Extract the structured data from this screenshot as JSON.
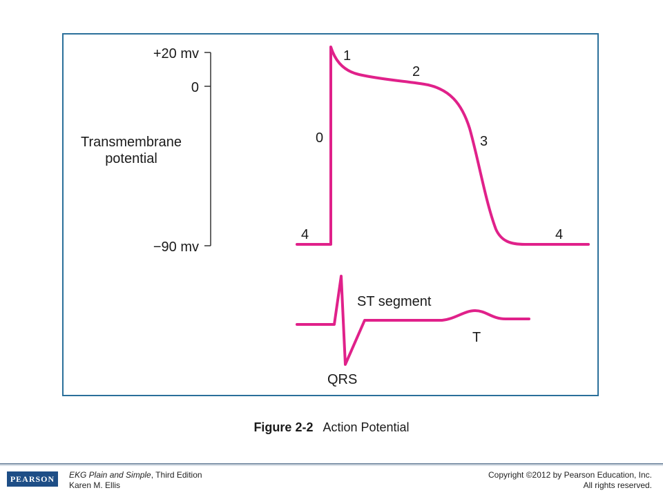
{
  "figure": {
    "y_axis": {
      "top_label": "+20 mv",
      "zero_label": "0",
      "bottom_label": "−90 mv",
      "title_line1": "Transmembrane",
      "title_line2": "potential"
    },
    "action_potential_phases": {
      "phase0": "0",
      "phase1": "1",
      "phase2": "2",
      "phase3": "3",
      "phase4_left": "4",
      "phase4_right": "4"
    },
    "ekg_labels": {
      "st_segment": "ST segment",
      "t_wave": "T",
      "qrs": "QRS"
    },
    "colors": {
      "trace": "#e0218a",
      "frame": "#2a6f9a"
    }
  },
  "caption": {
    "number": "Figure 2-2",
    "title": "Action Potential"
  },
  "footer": {
    "logo": "PEARSON",
    "book_title": "EKG Plain and Simple",
    "book_edition": ", Third Edition",
    "author": "Karen M. Ellis",
    "copyright_line1": "Copyright ©2012 by Pearson Education, Inc.",
    "copyright_line2": "All rights reserved."
  }
}
